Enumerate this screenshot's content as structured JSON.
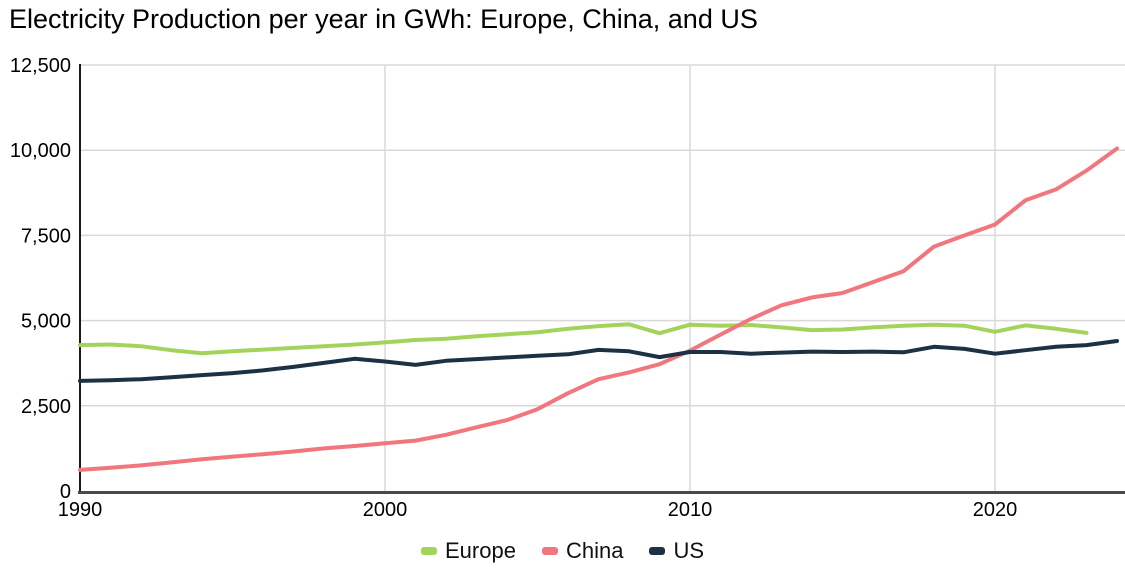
{
  "title": "Electricity Production per year in GWh: Europe, China, and US",
  "chart_data": {
    "type": "line",
    "title": "Electricity Production per year in GWh: Europe, China, and US",
    "xlabel": "",
    "ylabel": "",
    "xlim": [
      1990,
      2024
    ],
    "ylim": [
      0,
      12500
    ],
    "grid": true,
    "legend_position": "bottom",
    "x": [
      1990,
      1991,
      1992,
      1993,
      1994,
      1995,
      1996,
      1997,
      1998,
      1999,
      2000,
      2001,
      2002,
      2003,
      2004,
      2005,
      2006,
      2007,
      2008,
      2009,
      2010,
      2011,
      2012,
      2013,
      2014,
      2015,
      2016,
      2017,
      2018,
      2019,
      2020,
      2021,
      2022,
      2023,
      2024
    ],
    "x_ticks": [
      {
        "value": 1990,
        "label": "1990"
      },
      {
        "value": 2000,
        "label": "2000"
      },
      {
        "value": 2010,
        "label": "2010"
      },
      {
        "value": 2020,
        "label": "2020"
      }
    ],
    "y_ticks": [
      {
        "value": 0,
        "label": "0"
      },
      {
        "value": 2500,
        "label": "2,500"
      },
      {
        "value": 5000,
        "label": "5,000"
      },
      {
        "value": 7500,
        "label": "7,500"
      },
      {
        "value": 10000,
        "label": "10,000"
      },
      {
        "value": 12500,
        "label": "12,500"
      }
    ],
    "series": [
      {
        "name": "Europe",
        "color": "#a2d45c",
        "values": [
          4280,
          4300,
          4250,
          4130,
          4040,
          4100,
          4150,
          4200,
          4250,
          4300,
          4360,
          4430,
          4470,
          4540,
          4600,
          4660,
          4760,
          4840,
          4890,
          4630,
          4880,
          4850,
          4870,
          4800,
          4720,
          4740,
          4800,
          4850,
          4880,
          4850,
          4670,
          4860,
          4760,
          4640,
          null
        ]
      },
      {
        "name": "China",
        "color": "#f1767d",
        "values": [
          620,
          680,
          750,
          840,
          930,
          1010,
          1080,
          1160,
          1250,
          1320,
          1400,
          1480,
          1650,
          1870,
          2080,
          2400,
          2870,
          3280,
          3480,
          3720,
          4120,
          4590,
          5050,
          5450,
          5680,
          5810,
          6130,
          6450,
          7170,
          7500,
          7820,
          8530,
          8850,
          9400,
          10050
        ]
      },
      {
        "name": "US",
        "color": "#1c3144",
        "values": [
          3230,
          3250,
          3280,
          3340,
          3400,
          3460,
          3540,
          3640,
          3760,
          3880,
          3800,
          3700,
          3820,
          3870,
          3920,
          3970,
          4010,
          4140,
          4100,
          3930,
          4080,
          4080,
          4030,
          4060,
          4090,
          4080,
          4090,
          4070,
          4230,
          4170,
          4030,
          4130,
          4230,
          4280,
          4400
        ]
      }
    ],
    "style": {
      "grid_color": "#d9d9d9",
      "axis_color": "#4a4a4a",
      "spine_color": "#1a1a1a",
      "line_width": 4
    }
  }
}
